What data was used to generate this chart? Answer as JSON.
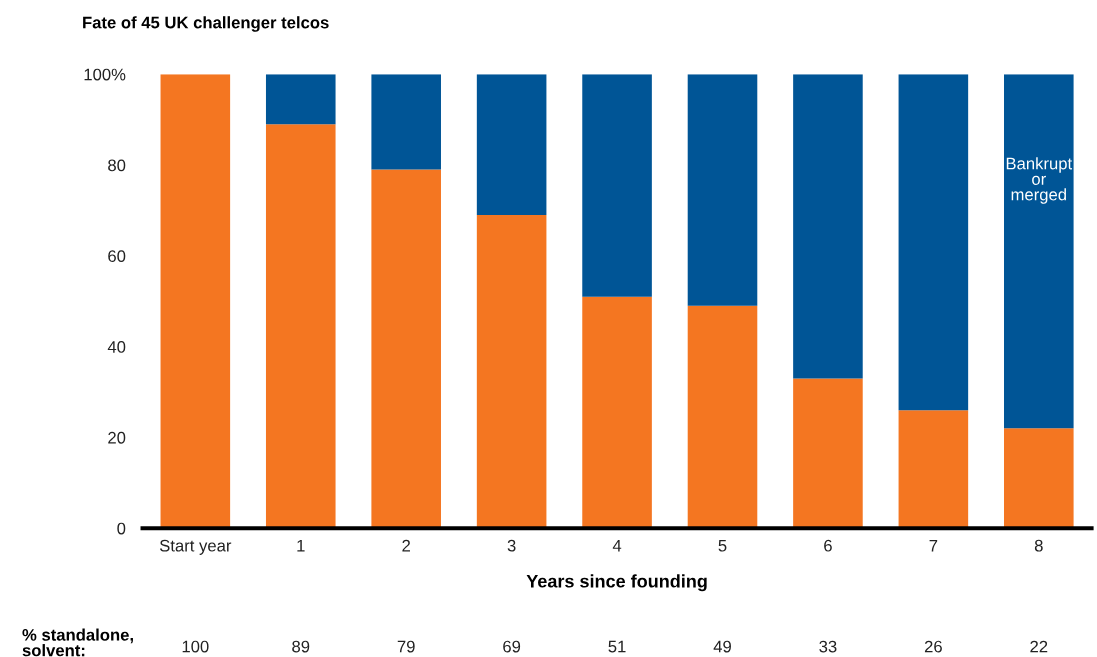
{
  "chart_data": {
    "type": "bar",
    "stacked": true,
    "title": "Fate of 45 UK challenger telcos",
    "xlabel": "Years since founding",
    "categories": [
      "Start year",
      "1",
      "2",
      "3",
      "4",
      "5",
      "6",
      "7",
      "8"
    ],
    "series": [
      {
        "color": "#f47621",
        "values": [
          100,
          89,
          79,
          69,
          51,
          49,
          33,
          26,
          22
        ],
        "value_labels": [
          "100",
          "89",
          "79",
          "69",
          "51",
          "49",
          "33",
          "26",
          "22"
        ]
      },
      {
        "name": "Bankrupt or merged",
        "color": "#005596",
        "values": [
          0,
          11,
          21,
          31,
          49,
          51,
          67,
          74,
          78
        ]
      }
    ],
    "ylim": [
      0,
      100
    ],
    "yticks": [
      0,
      20,
      40,
      60,
      80,
      {
        "value": 100,
        "label": "100%"
      }
    ],
    "annotations": [
      "% standalone, solvent:"
    ],
    "grid": false,
    "legend": false
  }
}
